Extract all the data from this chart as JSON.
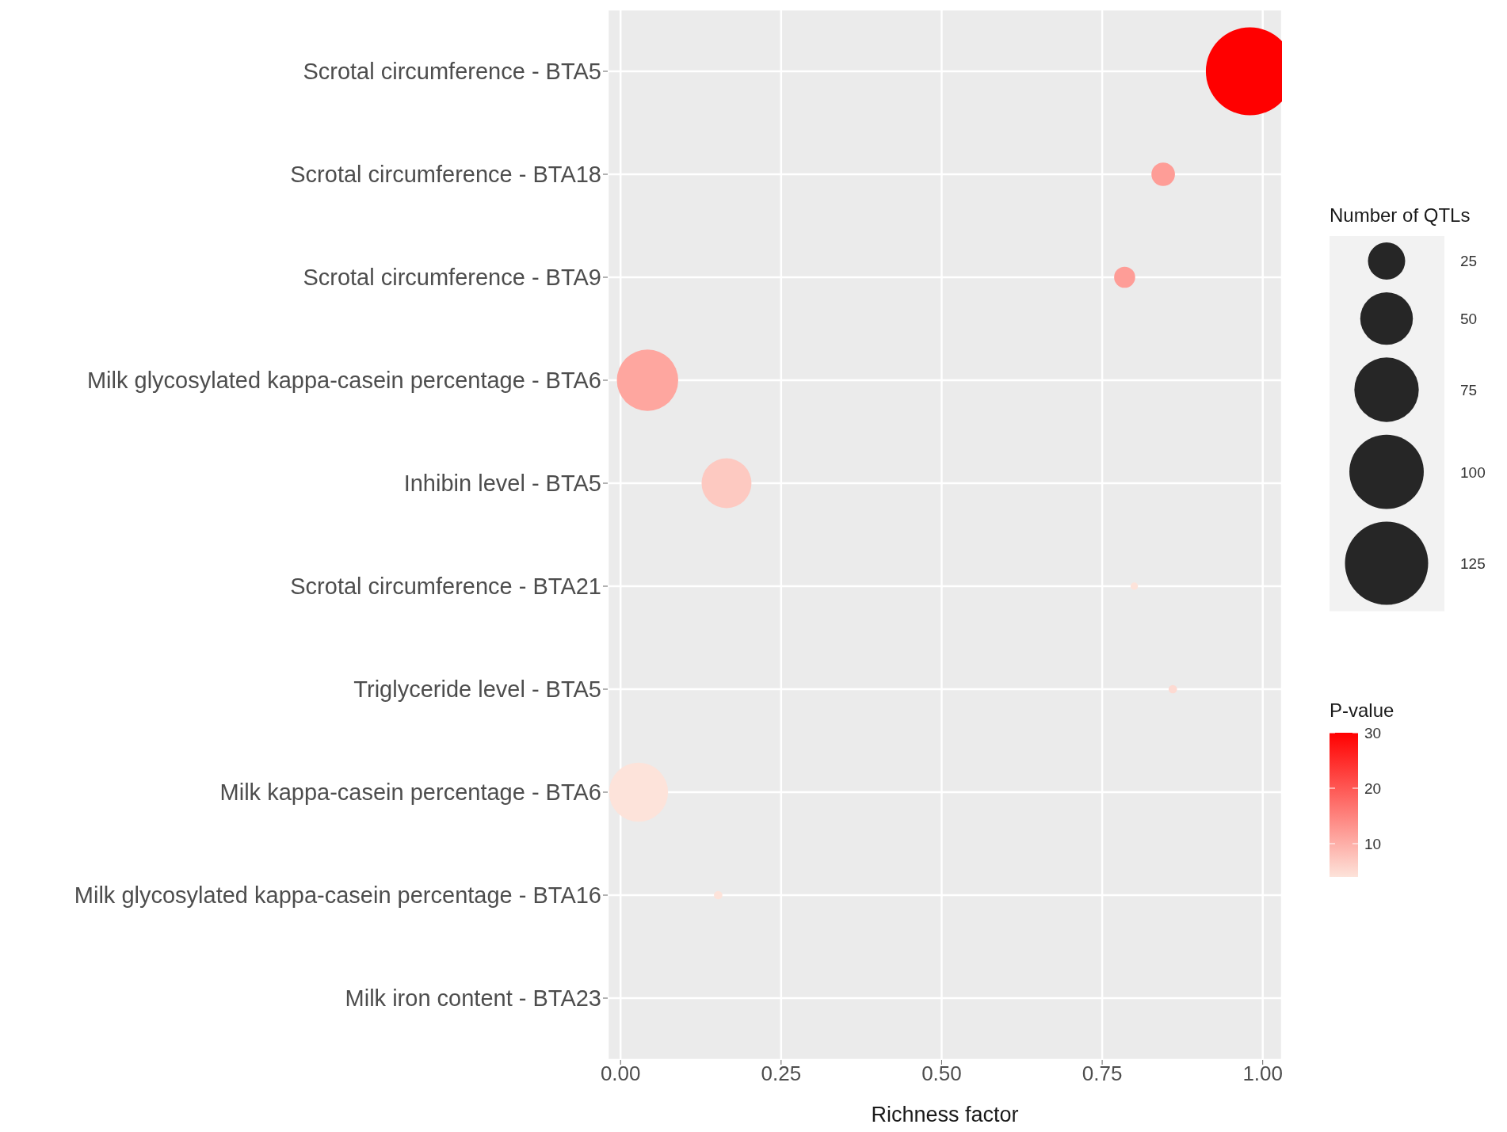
{
  "chart_data": {
    "type": "bubble",
    "xlabel": "Richness factor",
    "legend_title": "Number of QTLs",
    "clabel": "P-value",
    "categories": [
      "Scrotal circumference - BTA5",
      "Scrotal circumference - BTA18",
      "Scrotal circumference - BTA9",
      "Milk glycosylated kappa-casein percentage - BTA6",
      "Inhibin level - BTA5",
      "Scrotal circumference - BTA21",
      "Triglyceride level - BTA5",
      "Milk kappa-casein percentage - BTA6",
      "Milk glycosylated kappa-casein percentage - BTA16",
      "Milk iron content - BTA23"
    ],
    "values": [
      0.98,
      0.845,
      0.785,
      0.042,
      0.165,
      0.8,
      0.86,
      0.028,
      0.152,
      null
    ],
    "sizes": [
      140,
      10,
      8,
      68,
      45,
      1,
      1.3,
      63,
      1.3,
      null
    ],
    "cvalues": [
      30,
      12,
      12,
      11,
      7,
      4,
      5,
      4,
      4,
      null
    ],
    "size_legend": [
      25,
      50,
      75,
      100,
      125
    ],
    "clim": [
      4,
      30
    ],
    "cticks": [
      10,
      20,
      30
    ],
    "orientation": "horizontal",
    "xlim": [
      -0.02,
      1.03
    ],
    "xticks": [
      {
        "value": 0,
        "label": "0.00"
      },
      {
        "value": 0.25,
        "label": "0.25"
      },
      {
        "value": 0.5,
        "label": "0.50"
      },
      {
        "value": 0.75,
        "label": "0.75"
      },
      {
        "value": 1,
        "label": "1.00"
      }
    ],
    "grid": true
  }
}
